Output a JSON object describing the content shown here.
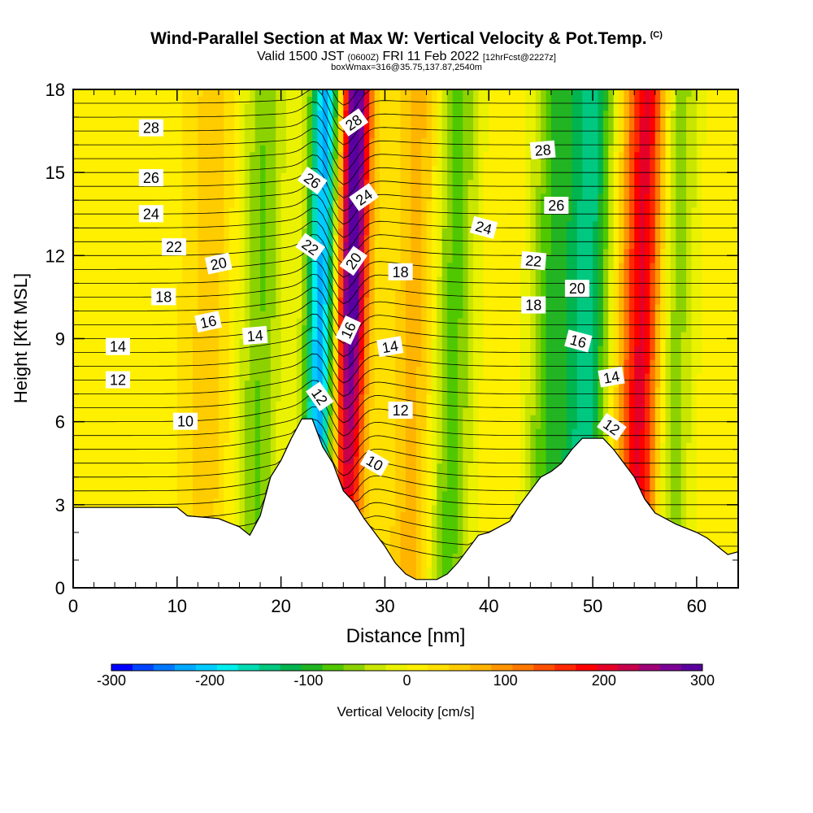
{
  "title": "Wind-Parallel Section at Max W: Vertical Velocity & Pot.Temp.",
  "copyright": "(C)",
  "subtitle": {
    "valid": "Valid 1500 JST",
    "utc": "(0600Z)",
    "date": "FRI 11 Feb 2022",
    "forecast": "[12hrFcst@2227z]"
  },
  "subtitle2": "boxWmax=316@35.75,137.87,2540m",
  "chart_data": {
    "type": "heatmap",
    "xlabel": "Distance [nm]",
    "ylabel": "Height [Kft MSL]",
    "xlim": [
      0,
      64
    ],
    "ylim": [
      0,
      18
    ],
    "x_ticks": [
      "0",
      "10",
      "20",
      "30",
      "40",
      "50",
      "60"
    ],
    "y_ticks": [
      "0",
      "3",
      "6",
      "9",
      "12",
      "15",
      "18"
    ],
    "colorbar": {
      "label": "Vertical Velocity [cm/s]",
      "range": [
        -300,
        300
      ],
      "tick_labels": [
        "-300",
        "-200",
        "-100",
        "0",
        "100",
        "200",
        "300"
      ],
      "colors": [
        "#0000ff",
        "#0044ff",
        "#0077ff",
        "#00aaff",
        "#00ccff",
        "#00eeee",
        "#00dcb4",
        "#00c880",
        "#00b450",
        "#22b422",
        "#50c800",
        "#8cd200",
        "#c8e600",
        "#eaf200",
        "#fff000",
        "#ffe000",
        "#ffcc00",
        "#ffb400",
        "#ff9600",
        "#ff7800",
        "#ff5000",
        "#ff2800",
        "#ff0000",
        "#e60028",
        "#c8004b",
        "#a00078",
        "#7d0096",
        "#5a00a0"
      ]
    },
    "terrain_kft": [
      [
        0,
        2.9
      ],
      [
        10,
        2.9
      ],
      [
        11,
        2.6
      ],
      [
        14,
        2.5
      ],
      [
        16,
        2.2
      ],
      [
        17,
        1.9
      ],
      [
        18,
        2.6
      ],
      [
        19,
        4.0
      ],
      [
        20,
        4.6
      ],
      [
        21,
        5.4
      ],
      [
        22,
        6.1
      ],
      [
        23,
        6.1
      ],
      [
        24,
        5.1
      ],
      [
        25,
        4.5
      ],
      [
        26,
        3.5
      ],
      [
        27,
        3.1
      ],
      [
        28,
        2.5
      ],
      [
        29,
        2.0
      ],
      [
        30,
        1.5
      ],
      [
        31,
        0.9
      ],
      [
        32,
        0.5
      ],
      [
        33,
        0.3
      ],
      [
        35,
        0.3
      ],
      [
        36,
        0.5
      ],
      [
        37,
        0.9
      ],
      [
        38,
        1.4
      ],
      [
        39,
        1.9
      ],
      [
        40,
        2.0
      ],
      [
        42,
        2.4
      ],
      [
        43,
        3.0
      ],
      [
        44,
        3.5
      ],
      [
        45,
        4.0
      ],
      [
        46,
        4.2
      ],
      [
        47,
        4.5
      ],
      [
        48,
        5.0
      ],
      [
        49,
        5.4
      ],
      [
        51,
        5.4
      ],
      [
        52,
        5.0
      ],
      [
        53,
        4.5
      ],
      [
        54,
        4.0
      ],
      [
        55,
        3.2
      ],
      [
        56,
        2.7
      ],
      [
        58,
        2.3
      ],
      [
        60,
        2.0
      ],
      [
        61,
        1.8
      ],
      [
        62,
        1.5
      ],
      [
        63,
        1.2
      ],
      [
        64,
        1.3
      ]
    ],
    "vertical_velocity_features_cm_s": [
      {
        "x": 26.7,
        "w": 300,
        "note": "updraft"
      },
      {
        "x": 23.8,
        "w": -240,
        "note": "downdraft"
      },
      {
        "x": 54.8,
        "w": 200,
        "note": "updraft"
      },
      {
        "x": 46.0,
        "w": -100,
        "note": "downdraft"
      },
      {
        "x": 49.5,
        "w": -150,
        "note": "downdraft"
      },
      {
        "x": 18.0,
        "w": -80,
        "note": "downdraft"
      },
      {
        "x": 36.5,
        "w": -90,
        "note": "downdraft"
      },
      {
        "x": 33.0,
        "w": 60,
        "note": "updraft"
      },
      {
        "x": 57.5,
        "w": -90,
        "note": "downdraft"
      },
      {
        "x": 13.0,
        "w": 40,
        "note": "updraft"
      }
    ],
    "theta_contour_labels": [
      {
        "text": "28",
        "x": 7.5,
        "y": 16.6,
        "rot": 0
      },
      {
        "text": "26",
        "x": 7.5,
        "y": 14.8,
        "rot": 0
      },
      {
        "text": "24",
        "x": 7.5,
        "y": 13.5,
        "rot": 0
      },
      {
        "text": "22",
        "x": 9.7,
        "y": 12.3,
        "rot": 0
      },
      {
        "text": "20",
        "x": 14.0,
        "y": 11.7,
        "rot": -12
      },
      {
        "text": "18",
        "x": 8.7,
        "y": 10.5,
        "rot": 0
      },
      {
        "text": "16",
        "x": 13.0,
        "y": 9.6,
        "rot": -12
      },
      {
        "text": "14",
        "x": 17.5,
        "y": 9.1,
        "rot": -5
      },
      {
        "text": "14",
        "x": 4.3,
        "y": 8.7,
        "rot": 0
      },
      {
        "text": "12",
        "x": 4.3,
        "y": 7.5,
        "rot": 0
      },
      {
        "text": "10",
        "x": 10.8,
        "y": 6.0,
        "rot": 0
      },
      {
        "text": "28",
        "x": 27.0,
        "y": 16.8,
        "rot": -35
      },
      {
        "text": "26",
        "x": 23.0,
        "y": 14.7,
        "rot": 35
      },
      {
        "text": "24",
        "x": 28.0,
        "y": 14.1,
        "rot": -35
      },
      {
        "text": "22",
        "x": 22.8,
        "y": 12.3,
        "rot": 35
      },
      {
        "text": "20",
        "x": 27.0,
        "y": 11.8,
        "rot": -55
      },
      {
        "text": "18",
        "x": 31.5,
        "y": 11.4,
        "rot": 0
      },
      {
        "text": "16",
        "x": 26.5,
        "y": 9.3,
        "rot": -65
      },
      {
        "text": "14",
        "x": 30.5,
        "y": 8.7,
        "rot": -10
      },
      {
        "text": "12",
        "x": 23.7,
        "y": 6.9,
        "rot": 55
      },
      {
        "text": "12",
        "x": 31.5,
        "y": 6.4,
        "rot": 0
      },
      {
        "text": "10",
        "x": 29.0,
        "y": 4.5,
        "rot": 30
      },
      {
        "text": "28",
        "x": 45.2,
        "y": 15.8,
        "rot": -5
      },
      {
        "text": "26",
        "x": 46.5,
        "y": 13.8,
        "rot": 0
      },
      {
        "text": "24",
        "x": 39.5,
        "y": 13.0,
        "rot": 15
      },
      {
        "text": "22",
        "x": 44.3,
        "y": 11.8,
        "rot": 5
      },
      {
        "text": "20",
        "x": 48.5,
        "y": 10.8,
        "rot": 0
      },
      {
        "text": "18",
        "x": 44.3,
        "y": 10.2,
        "rot": 0
      },
      {
        "text": "16",
        "x": 48.6,
        "y": 8.9,
        "rot": 15
      },
      {
        "text": "14",
        "x": 51.8,
        "y": 7.6,
        "rot": -10
      },
      {
        "text": "12",
        "x": 51.8,
        "y": 5.8,
        "rot": 35
      }
    ]
  }
}
